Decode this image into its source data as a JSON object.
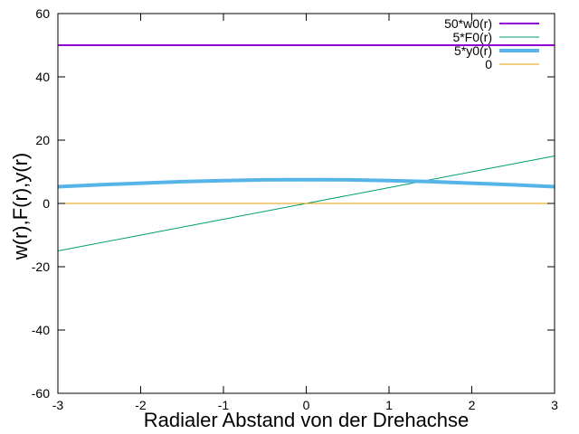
{
  "chart_data": {
    "type": "line",
    "title": "",
    "xlabel": "Radialer Abstand von der Drehachse",
    "ylabel": "w(r),F(r),y(r)",
    "xlim": [
      -3,
      3
    ],
    "ylim": [
      -60,
      60
    ],
    "xticks": [
      -3,
      -2,
      -1,
      0,
      1,
      2,
      3
    ],
    "yticks": [
      -60,
      -40,
      -20,
      0,
      20,
      40,
      60
    ],
    "grid": false,
    "legend_position": "top-right",
    "series": [
      {
        "name": "50*w0(r)",
        "color": "#9400d3",
        "width": 2,
        "style": "solid",
        "x": [
          -3,
          3
        ],
        "y": [
          50,
          50
        ]
      },
      {
        "name": "5*F0(r)",
        "color": "#009e73",
        "width": 1,
        "style": "solid",
        "x": [
          -3,
          -2,
          -1,
          0,
          1,
          2,
          3
        ],
        "y": [
          -15,
          -10,
          -5,
          0,
          5,
          10,
          15
        ]
      },
      {
        "name": "5*y0(r)",
        "color": "#56b4e9",
        "width": 4,
        "style": "solid",
        "x": [
          -3,
          -2.5,
          -2,
          -1.5,
          -1,
          -0.5,
          0,
          0.5,
          1,
          1.5,
          2,
          2.5,
          3
        ],
        "y": [
          5.3,
          5.9,
          6.4,
          6.9,
          7.2,
          7.45,
          7.5,
          7.45,
          7.2,
          6.9,
          6.4,
          5.9,
          5.3
        ]
      },
      {
        "name": "0",
        "color": "#e69f00",
        "width": 1,
        "style": "solid",
        "x": [
          -3,
          3
        ],
        "y": [
          0,
          0
        ]
      }
    ]
  }
}
